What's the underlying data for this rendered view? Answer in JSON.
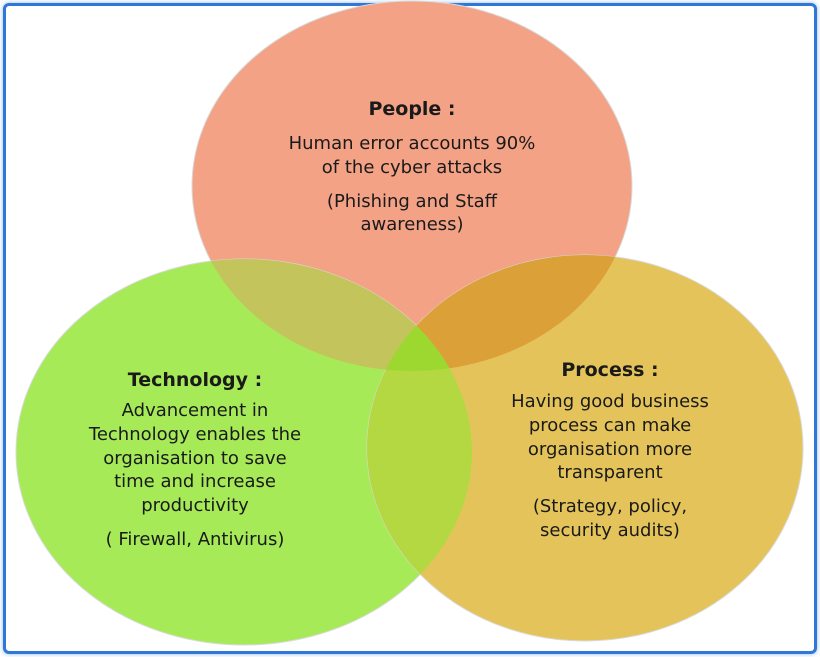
{
  "colors": {
    "frame_border": "#2f78d8",
    "people_fill": "#f3a286",
    "technology_fill": "#a6ea58",
    "process_fill": "#e4c45a",
    "people_technology_overlap": "#c4c45c",
    "people_process_overlap": "#dca038",
    "technology_process_overlap": "#b4d842",
    "center_overlap": "#9cd830"
  },
  "people": {
    "heading": "People :",
    "line1": "Human error accounts 90%",
    "line2": "of the  cyber attacks",
    "line3": "(Phishing and Staff",
    "line4": "awareness)"
  },
  "technology": {
    "heading": "Technology :",
    "line1": "Advancement  in",
    "line2": "Technology enables the",
    "line3": "organisation to save",
    "line4": "time and increase",
    "line5": "productivity",
    "line6": "( Firewall, Antivirus)"
  },
  "process": {
    "heading": "Process :",
    "line1": "Having good business",
    "line2": "process can make",
    "line3": "organisation more",
    "line4": "transparent",
    "line5": "(Strategy, policy,",
    "line6": "security audits)"
  }
}
